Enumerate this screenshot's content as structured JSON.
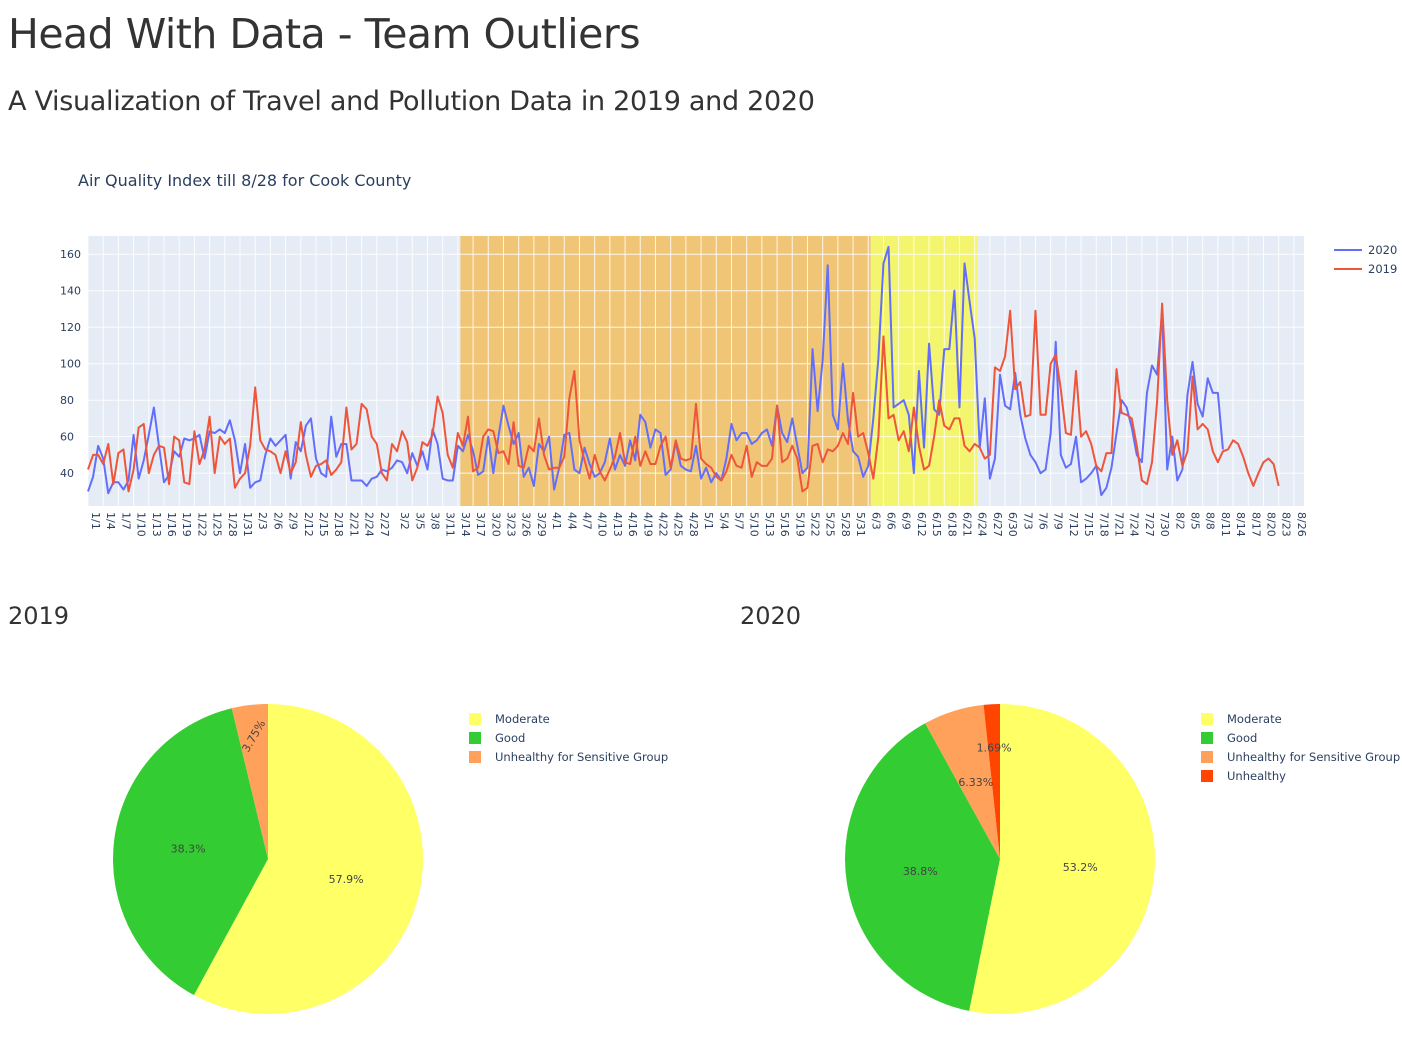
{
  "page": {
    "title": "Head With Data - Team Outliers",
    "subtitle": "A Visualization of Travel and Pollution Data in 2019 and 2020",
    "pie_heading_2019": "2019",
    "pie_heading_2020": "2020"
  },
  "colors": {
    "plot_bg": "#e5ecf6",
    "series_2020": "#636efa",
    "series_2019": "#ef553b",
    "band_lockdown": "#f0c676",
    "band_reopening": "#f3f56e",
    "moderate": "#ffff66",
    "good": "#33cc33",
    "usg": "#ffa15a",
    "unhealthy": "#ff4500"
  },
  "chart_data": [
    {
      "type": "line",
      "title": "Air Quality Index till 8/28 for Cook County",
      "xlabel": "",
      "ylabel": "",
      "ylim": [
        22,
        170
      ],
      "yticks": [
        40,
        60,
        80,
        100,
        120,
        140,
        160
      ],
      "grid": true,
      "legend_position": "top-right",
      "x_tick_labels": [
        "1/1",
        "1/4",
        "1/7",
        "1/10",
        "1/13",
        "1/16",
        "1/19",
        "1/22",
        "1/25",
        "1/28",
        "1/31",
        "2/3",
        "2/6",
        "2/9",
        "2/12",
        "2/15",
        "2/18",
        "2/21",
        "2/24",
        "2/27",
        "3/2",
        "3/5",
        "3/8",
        "3/11",
        "3/14",
        "3/17",
        "3/20",
        "3/23",
        "3/26",
        "3/29",
        "4/1",
        "4/4",
        "4/7",
        "4/10",
        "4/13",
        "4/16",
        "4/19",
        "4/22",
        "4/25",
        "4/28",
        "5/1",
        "5/4",
        "5/7",
        "5/10",
        "5/13",
        "5/16",
        "5/19",
        "5/22",
        "5/25",
        "5/28",
        "5/31",
        "6/3",
        "6/6",
        "6/9",
        "6/12",
        "6/15",
        "6/18",
        "6/21",
        "6/24",
        "6/27",
        "6/30",
        "7/3",
        "7/6",
        "7/9",
        "7/12",
        "7/15",
        "7/18",
        "7/21",
        "7/24",
        "7/27",
        "7/30",
        "8/2",
        "8/5",
        "8/8",
        "8/11",
        "8/14",
        "8/17",
        "8/20",
        "8/23",
        "8/26"
      ],
      "x_day_range": [
        1,
        241
      ],
      "shaded_regions": [
        {
          "from": "3/15",
          "to": "6/3",
          "color": "#f0c676"
        },
        {
          "from": "6/4",
          "to": "6/24",
          "color": "#f3f56e"
        }
      ],
      "series": [
        {
          "name": "2020",
          "color": "#636efa",
          "values": [
            30,
            38,
            55,
            48,
            29,
            35,
            35,
            31,
            36,
            61,
            37,
            47,
            61,
            76,
            55,
            35,
            39,
            52,
            49,
            59,
            58,
            59,
            61,
            48,
            63,
            62,
            64,
            62,
            69,
            58,
            40,
            56,
            32,
            35,
            36,
            50,
            59,
            55,
            58,
            61,
            37,
            57,
            52,
            66,
            70,
            48,
            40,
            38,
            71,
            49,
            56,
            56,
            36,
            36,
            36,
            33,
            37,
            38,
            42,
            41,
            43,
            47,
            46,
            40,
            51,
            44,
            52,
            42,
            64,
            56,
            37,
            36,
            36,
            55,
            52,
            61,
            52,
            39,
            41,
            60,
            40,
            60,
            77,
            66,
            56,
            62,
            38,
            43,
            33,
            56,
            52,
            60,
            31,
            43,
            61,
            62,
            42,
            40,
            54,
            45,
            38,
            40,
            46,
            59,
            42,
            50,
            44,
            58,
            47,
            72,
            68,
            54,
            64,
            62,
            39,
            42,
            57,
            44,
            42,
            41,
            55,
            37,
            43,
            35,
            40,
            36,
            48,
            67,
            58,
            62,
            62,
            56,
            58,
            62,
            64,
            55,
            77,
            62,
            57,
            70,
            55,
            40,
            43,
            108,
            74,
            102,
            154,
            72,
            64,
            100,
            69,
            52,
            49,
            38,
            44,
            70,
            103,
            155,
            164,
            76,
            78,
            80,
            72,
            40,
            96,
            54,
            111,
            75,
            72,
            108,
            108,
            140,
            76,
            155,
            134,
            114,
            54,
            81,
            37,
            48,
            94,
            77,
            75,
            95,
            72,
            59,
            50,
            46,
            40,
            42,
            62,
            112,
            50,
            43,
            45,
            60,
            35,
            37,
            40,
            44,
            28,
            32,
            43,
            62,
            80,
            76,
            65,
            50,
            46,
            84,
            99,
            94,
            129,
            42,
            60,
            36,
            42,
            83,
            101,
            78,
            71,
            92,
            84,
            84,
            53
          ]
        },
        {
          "name": "2019",
          "color": "#ef553b",
          "values": [
            42,
            50,
            50,
            45,
            56,
            34,
            51,
            53,
            30,
            42,
            65,
            67,
            40,
            50,
            55,
            54,
            34,
            60,
            58,
            35,
            34,
            63,
            45,
            53,
            71,
            40,
            60,
            56,
            59,
            32,
            37,
            40,
            55,
            87,
            58,
            53,
            52,
            50,
            40,
            52,
            40,
            46,
            68,
            50,
            38,
            44,
            45,
            47,
            39,
            42,
            46,
            76,
            53,
            56,
            78,
            75,
            60,
            56,
            40,
            36,
            56,
            52,
            63,
            57,
            36,
            43,
            57,
            55,
            61,
            82,
            73,
            50,
            43,
            62,
            55,
            71,
            41,
            43,
            60,
            64,
            63,
            51,
            52,
            45,
            68,
            44,
            43,
            55,
            52,
            70,
            50,
            42,
            43,
            43,
            49,
            81,
            96,
            58,
            47,
            37,
            50,
            41,
            36,
            42,
            49,
            62,
            46,
            45,
            60,
            44,
            52,
            45,
            45,
            55,
            60,
            43,
            58,
            48,
            47,
            48,
            78,
            48,
            45,
            43,
            38,
            36,
            41,
            50,
            44,
            43,
            55,
            38,
            46,
            44,
            44,
            48,
            77,
            46,
            48,
            55,
            48,
            30,
            32,
            55,
            56,
            46,
            53,
            52,
            55,
            62,
            56,
            84,
            60,
            62,
            51,
            37,
            60,
            115,
            70,
            72,
            58,
            63,
            52,
            76,
            55,
            42,
            44,
            60,
            80,
            66,
            64,
            70,
            70,
            55,
            52,
            56,
            54,
            48,
            50,
            98,
            96,
            104,
            129,
            86,
            90,
            71,
            72,
            129,
            72,
            72,
            100,
            105,
            86,
            62,
            61,
            96,
            60,
            63,
            56,
            44,
            41,
            51,
            51,
            97,
            73,
            72,
            70,
            55,
            36,
            34,
            46,
            79,
            133,
            80,
            50,
            58,
            44,
            52,
            93,
            64,
            67,
            64,
            52,
            46,
            52,
            53,
            58,
            56,
            49,
            40,
            33,
            40,
            46,
            48,
            45,
            33
          ]
        }
      ]
    },
    {
      "type": "pie",
      "title": "2019",
      "legend_position": "right",
      "slices": [
        {
          "label": "Moderate",
          "value": 57.9,
          "text": "57.9%",
          "color": "#ffff66"
        },
        {
          "label": "Good",
          "value": 38.3,
          "text": "38.3%",
          "color": "#33cc33"
        },
        {
          "label": "Unhealthy for Sensitive Group",
          "value": 3.75,
          "text": "3.75%",
          "color": "#ffa15a"
        }
      ]
    },
    {
      "type": "pie",
      "title": "2020",
      "legend_position": "right",
      "slices": [
        {
          "label": "Moderate",
          "value": 53.2,
          "text": "53.2%",
          "color": "#ffff66"
        },
        {
          "label": "Good",
          "value": 38.8,
          "text": "38.8%",
          "color": "#33cc33"
        },
        {
          "label": "Unhealthy for Sensitive Group",
          "value": 6.33,
          "text": "6.33%",
          "color": "#ffa15a"
        },
        {
          "label": "Unhealthy",
          "value": 1.69,
          "text": "1.69%",
          "color": "#ff4500"
        }
      ]
    }
  ]
}
